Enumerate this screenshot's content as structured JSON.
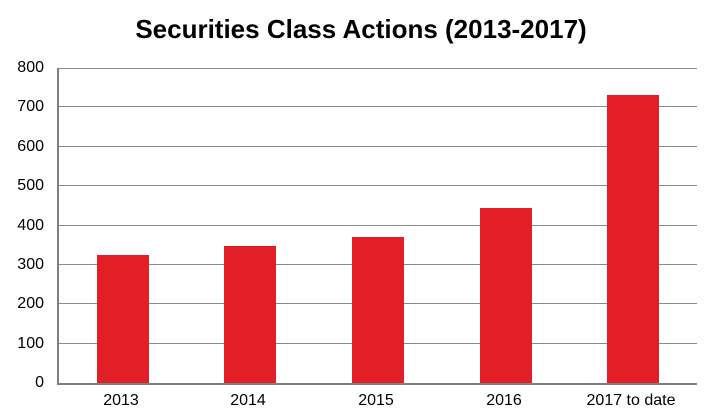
{
  "chart_data": {
    "type": "bar",
    "title": "Securities Class Actions (2013-2017)",
    "categories": [
      "2013",
      "2014",
      "2015",
      "2016",
      "2017 to date"
    ],
    "values": [
      325,
      347,
      370,
      444,
      732
    ],
    "xlabel": "",
    "ylabel": "",
    "ylim": [
      0,
      800
    ],
    "yticks": [
      0,
      100,
      200,
      300,
      400,
      500,
      600,
      700,
      800
    ],
    "grid": true,
    "legend": false,
    "colors": {
      "bar": "#e21e26",
      "gridline": "#8c8c8c",
      "axis": "#808080",
      "text": "#000000",
      "background": "#ffffff"
    }
  }
}
